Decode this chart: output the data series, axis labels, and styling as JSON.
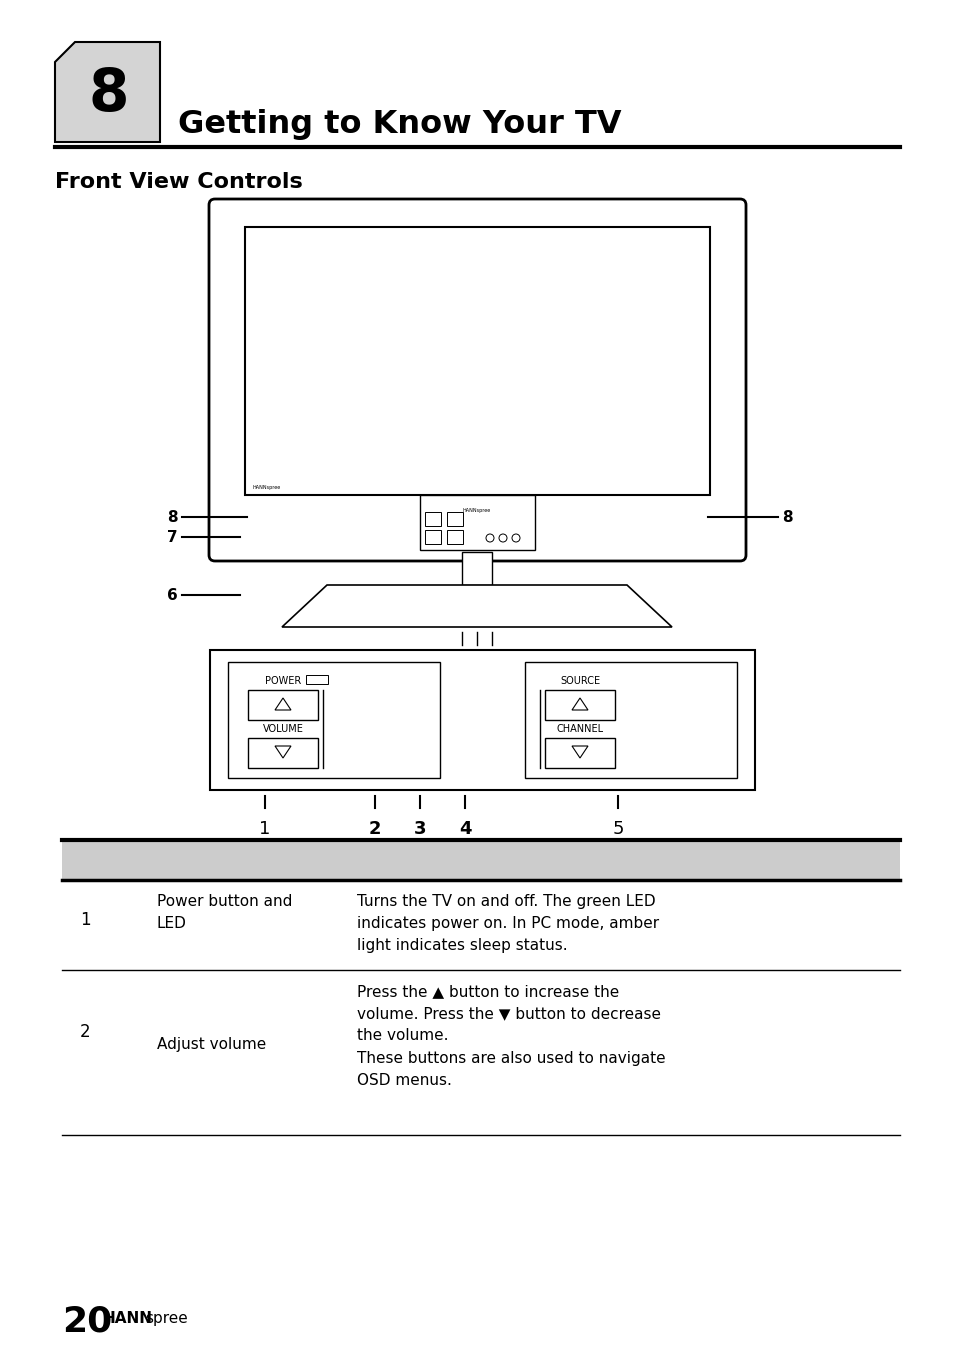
{
  "page_title": "Getting to Know Your TV",
  "chapter_num": "8",
  "section_title": "Front View Controls",
  "bg_color": "#ffffff",
  "header_box_color": "#d4d4d4",
  "table_header_color": "#cccccc",
  "footer_bold": "20",
  "footer_brand_bold": "HANN",
  "footer_brand_normal": "spree",
  "label_8_left": "8",
  "label_8_right": "8",
  "label_7": "7",
  "label_6": "6",
  "labels_bottom": [
    "1",
    "2",
    "3",
    "4",
    "5"
  ]
}
